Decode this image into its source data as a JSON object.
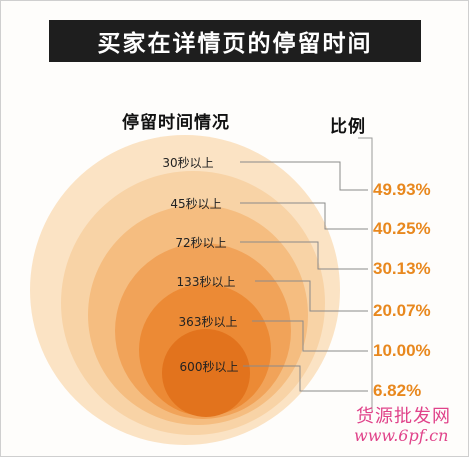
{
  "header": {
    "title": "买家在详情页的停留时间"
  },
  "chart_data": {
    "type": "nested-circles",
    "title": "买家在详情页的停留时间",
    "left_heading": "停留时间情况",
    "right_heading": "比例",
    "series": [
      {
        "label": "30秒以上",
        "value": 49.93,
        "value_label": "49.93%"
      },
      {
        "label": "45秒以上",
        "value": 40.25,
        "value_label": "40.25%"
      },
      {
        "label": "72秒以上",
        "value": 30.13,
        "value_label": "30.13%"
      },
      {
        "label": "133秒以上",
        "value": 20.07,
        "value_label": "20.07%"
      },
      {
        "label": "363秒以上",
        "value": 10.0,
        "value_label": "10.00%"
      },
      {
        "label": "600秒以上",
        "value": 6.82,
        "value_label": "6.82%"
      }
    ],
    "colors": {
      "rings": [
        "#fbe3c4",
        "#f8d3a6",
        "#f5bd80",
        "#f1a359",
        "#ec8a35",
        "#e2731d"
      ],
      "value_text": "#e8881e",
      "leader_line": "#8a8a8a"
    }
  },
  "watermark": {
    "text": "货源批发网",
    "url": "www.6pf.cn"
  }
}
